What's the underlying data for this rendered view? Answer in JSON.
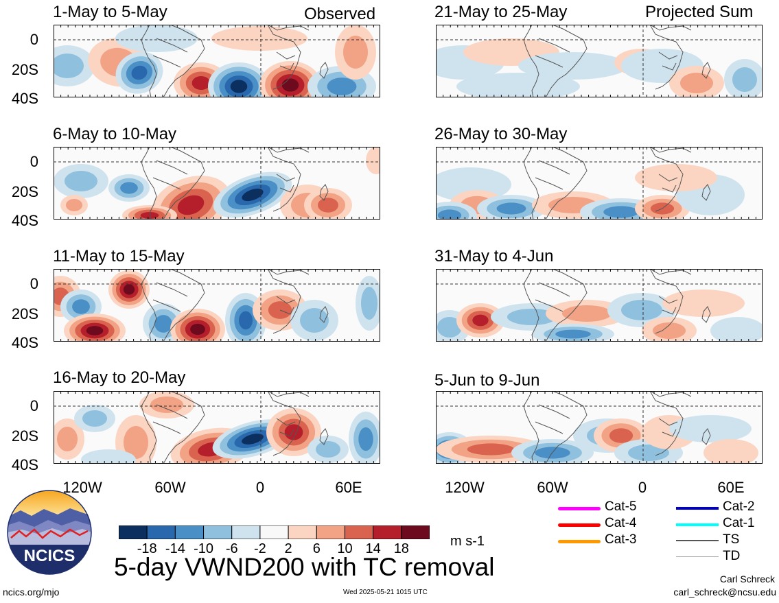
{
  "panels": [
    {
      "title": "1-May to 5-May",
      "tag": "Observed",
      "style": 0
    },
    {
      "title": "21-May to 25-May",
      "tag": "Projected Sum",
      "style": 4
    },
    {
      "title": "6-May to 10-May",
      "tag": "",
      "style": 1
    },
    {
      "title": "26-May to 30-May",
      "tag": "",
      "style": 5
    },
    {
      "title": "11-May to 15-May",
      "tag": "",
      "style": 2
    },
    {
      "title": "31-May to 4-Jun",
      "tag": "",
      "style": 6
    },
    {
      "title": "16-May to 20-May",
      "tag": "",
      "style": 3
    },
    {
      "title": "5-Jun to 9-Jun",
      "tag": "",
      "style": 7
    }
  ],
  "lat_labels": [
    "0",
    "20S",
    "40S"
  ],
  "lon_labels": [
    "120W",
    "60W",
    "0",
    "60E"
  ],
  "colorbar": {
    "colors": [
      "#0b2f5e",
      "#2a68ad",
      "#4a8fc6",
      "#8fc0de",
      "#cfe3ef",
      "#f8f8f8",
      "#fbd5c2",
      "#f2a285",
      "#d9634e",
      "#b51f2b",
      "#6e0a1d"
    ],
    "labels": [
      "-18",
      "-14",
      "-10",
      "-6",
      "-2",
      "2",
      "6",
      "10",
      "14",
      "18"
    ],
    "units": "m s-1"
  },
  "main_title": "5-day VWND200 with TC removal",
  "logo": {
    "text": "NCICS"
  },
  "legend": [
    {
      "label": "Cat-5",
      "color": "#ff00ff"
    },
    {
      "label": "Cat-2",
      "color": "#0000cc"
    },
    {
      "label": "Cat-4",
      "color": "#ff0000"
    },
    {
      "label": "Cat-1",
      "color": "#00ffff"
    },
    {
      "label": "Cat-3",
      "color": "#ff9900"
    },
    {
      "label": "TS",
      "color": "#555555"
    },
    {
      "label": "TD",
      "color": "#aaaaaa"
    }
  ],
  "footer": {
    "left": "ncics.org/mjo",
    "center": "Wed 2025-05-21 1015 UTC",
    "author": "Carl Schreck",
    "email": "carl_schreck@ncsu.edu"
  }
}
